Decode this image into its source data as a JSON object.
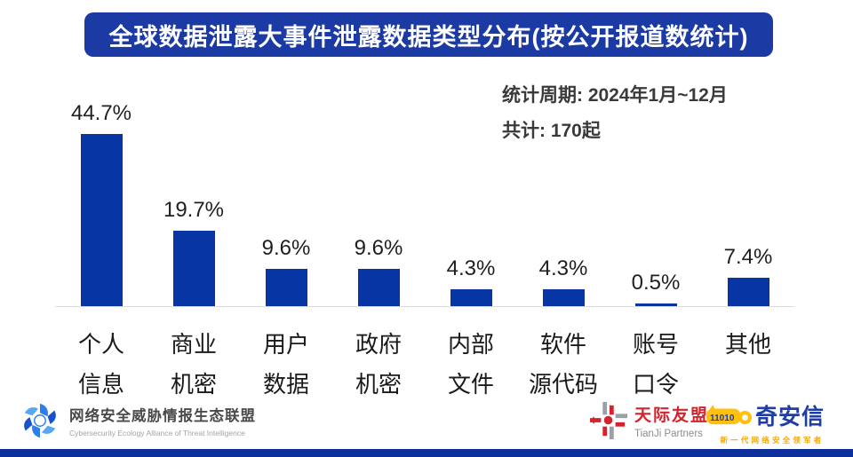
{
  "title": "全球数据泄露大事件泄露数据类型分布(按公开报道数统计)",
  "stats": {
    "period": "统计周期: 2024年1月~12月",
    "total": "共计: 170起"
  },
  "chart_data": {
    "type": "bar",
    "title": "全球数据泄露大事件泄露数据类型分布(按公开报道数统计)",
    "categories_full": [
      "个人信息",
      "商业机密",
      "用户数据",
      "政府机密",
      "内部文件",
      "软件源代码",
      "账号口令",
      "其他"
    ],
    "categories": [
      [
        "个人",
        "信息"
      ],
      [
        "商业",
        "机密"
      ],
      [
        "用户",
        "数据"
      ],
      [
        "政府",
        "机密"
      ],
      [
        "内部",
        "文件"
      ],
      [
        "软件",
        "源代码"
      ],
      [
        "账号",
        "口令"
      ],
      [
        "其他"
      ]
    ],
    "values": [
      44.7,
      19.7,
      9.6,
      9.6,
      4.3,
      4.3,
      0.5,
      7.4
    ],
    "value_labels": [
      "44.7%",
      "19.7%",
      "9.6%",
      "9.6%",
      "4.3%",
      "4.3%",
      "0.5%",
      "7.4%"
    ],
    "ylim": [
      0,
      50
    ],
    "grid": false,
    "legend": false,
    "bar_color": "#0735a3"
  },
  "footer": {
    "alliance": {
      "name": "网络安全威胁情报生态联盟",
      "subtitle": "Cybersecurity  Ecology Alliance of Threat Intelligence"
    },
    "tianji": {
      "name": "天际友盟",
      "subtitle": "TianJi Partners"
    },
    "qianxin": {
      "name": "奇安信",
      "binary": "11010",
      "tagline": "新一代网络安全领军者"
    }
  },
  "colors": {
    "banner": "#1c3aa3",
    "bar": "#0735a3",
    "footer_strip": "#0d2f9b"
  }
}
